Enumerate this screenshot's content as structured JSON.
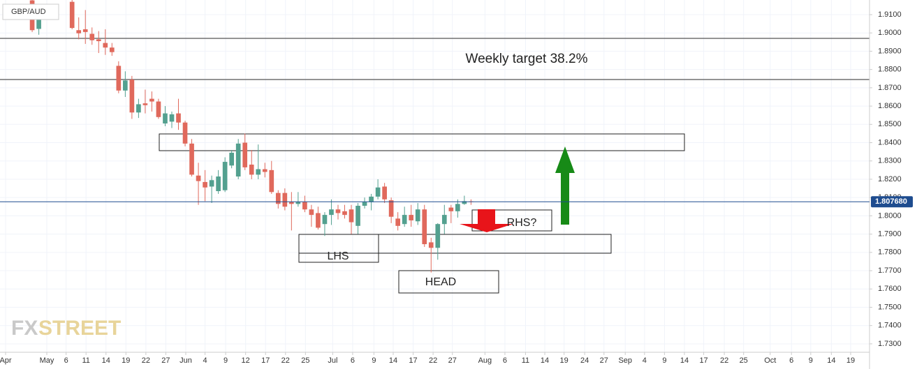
{
  "chart_data": {
    "type": "candlestick",
    "symbol": "GBP/AUD",
    "up_color": "#53a08f",
    "down_color": "#e0695c",
    "grid": true,
    "xlim": [
      -0.84,
      129.94
    ],
    "ylim": [
      1.7254,
      1.918
    ],
    "yticks": [
      {
        "value": 1.73,
        "label": "1.7300"
      },
      {
        "value": 1.74,
        "label": "1.7400"
      },
      {
        "value": 1.75,
        "label": "1.7500"
      },
      {
        "value": 1.76,
        "label": "1.7600"
      },
      {
        "value": 1.77,
        "label": "1.7700"
      },
      {
        "value": 1.78,
        "label": "1.7800"
      },
      {
        "value": 1.79,
        "label": "1.7900"
      },
      {
        "value": 1.8,
        "label": "1.8000"
      },
      {
        "value": 1.81,
        "label": "1.8100"
      },
      {
        "value": 1.82,
        "label": "1.8200"
      },
      {
        "value": 1.83,
        "label": "1.8300"
      },
      {
        "value": 1.84,
        "label": "1.8400"
      },
      {
        "value": 1.85,
        "label": "1.8500"
      },
      {
        "value": 1.86,
        "label": "1.8600"
      },
      {
        "value": 1.87,
        "label": "1.8700"
      },
      {
        "value": 1.88,
        "label": "1.8800"
      },
      {
        "value": 1.89,
        "label": "1.8900"
      },
      {
        "value": 1.9,
        "label": "1.9000"
      },
      {
        "value": 1.91,
        "label": "1.9100"
      }
    ],
    "xticks": [
      {
        "value": 0,
        "label": "Apr"
      },
      {
        "value": 6.2,
        "label": "May"
      },
      {
        "value": 9.1,
        "label": "6"
      },
      {
        "value": 12.1,
        "label": "11"
      },
      {
        "value": 15.1,
        "label": "14"
      },
      {
        "value": 18.1,
        "label": "19"
      },
      {
        "value": 21.1,
        "label": "22"
      },
      {
        "value": 24.1,
        "label": "27"
      },
      {
        "value": 27.1,
        "label": "Jun"
      },
      {
        "value": 30,
        "label": "4"
      },
      {
        "value": 33.1,
        "label": "9"
      },
      {
        "value": 36.1,
        "label": "12"
      },
      {
        "value": 39.1,
        "label": "17"
      },
      {
        "value": 42.1,
        "label": "22"
      },
      {
        "value": 45.1,
        "label": "25"
      },
      {
        "value": 49.2,
        "label": "Jul"
      },
      {
        "value": 52.2,
        "label": "6"
      },
      {
        "value": 55.4,
        "label": "9"
      },
      {
        "value": 58.3,
        "label": "14"
      },
      {
        "value": 61.3,
        "label": "17"
      },
      {
        "value": 64.3,
        "label": "22"
      },
      {
        "value": 67.2,
        "label": "27"
      },
      {
        "value": 72.1,
        "label": "Aug"
      },
      {
        "value": 75.1,
        "label": "6"
      },
      {
        "value": 78.2,
        "label": "11"
      },
      {
        "value": 81.1,
        "label": "14"
      },
      {
        "value": 84,
        "label": "19"
      },
      {
        "value": 87.1,
        "label": "24"
      },
      {
        "value": 90,
        "label": "27"
      },
      {
        "value": 93.2,
        "label": "Sep"
      },
      {
        "value": 96.1,
        "label": "4"
      },
      {
        "value": 99.1,
        "label": "9"
      },
      {
        "value": 102.1,
        "label": "14"
      },
      {
        "value": 105,
        "label": "17"
      },
      {
        "value": 108.1,
        "label": "22"
      },
      {
        "value": 111,
        "label": "25"
      },
      {
        "value": 115,
        "label": "Oct"
      },
      {
        "value": 118.2,
        "label": "6"
      },
      {
        "value": 121.1,
        "label": "9"
      },
      {
        "value": 124.2,
        "label": "14"
      },
      {
        "value": 127.1,
        "label": "19"
      }
    ],
    "candles": [
      {
        "x": 4,
        "open": 1.9178,
        "high": 1.918,
        "low": 1.9005,
        "close": 1.9015
      },
      {
        "x": 5,
        "open": 1.9022,
        "high": 1.914,
        "low": 1.899,
        "close": 1.9077
      },
      {
        "x": 10,
        "open": 1.917,
        "high": 1.918,
        "low": 1.902,
        "close": 1.9027
      },
      {
        "x": 11,
        "open": 1.9015,
        "high": 1.9085,
        "low": 1.8965,
        "close": 1.8998
      },
      {
        "x": 12,
        "open": 1.902,
        "high": 1.9125,
        "low": 1.894,
        "close": 1.9005
      },
      {
        "x": 13,
        "open": 1.8995,
        "high": 1.903,
        "low": 1.8935,
        "close": 1.896
      },
      {
        "x": 14,
        "open": 1.8965,
        "high": 1.901,
        "low": 1.889,
        "close": 1.8955
      },
      {
        "x": 15,
        "open": 1.8945,
        "high": 1.902,
        "low": 1.888,
        "close": 1.892
      },
      {
        "x": 16,
        "open": 1.892,
        "high": 1.8945,
        "low": 1.8875,
        "close": 1.8895
      },
      {
        "x": 17,
        "open": 1.882,
        "high": 1.8845,
        "low": 1.867,
        "close": 1.8685
      },
      {
        "x": 18,
        "open": 1.8685,
        "high": 1.879,
        "low": 1.865,
        "close": 1.874
      },
      {
        "x": 19,
        "open": 1.8745,
        "high": 1.8765,
        "low": 1.853,
        "close": 1.8565
      },
      {
        "x": 20,
        "open": 1.8565,
        "high": 1.864,
        "low": 1.8535,
        "close": 1.861
      },
      {
        "x": 21,
        "open": 1.8615,
        "high": 1.869,
        "low": 1.856,
        "close": 1.8605
      },
      {
        "x": 22,
        "open": 1.864,
        "high": 1.868,
        "low": 1.857,
        "close": 1.8625
      },
      {
        "x": 23,
        "open": 1.8625,
        "high": 1.864,
        "low": 1.853,
        "close": 1.854
      },
      {
        "x": 24,
        "open": 1.8505,
        "high": 1.86,
        "low": 1.849,
        "close": 1.856
      },
      {
        "x": 25,
        "open": 1.8515,
        "high": 1.857,
        "low": 1.848,
        "close": 1.8555
      },
      {
        "x": 26,
        "open": 1.856,
        "high": 1.864,
        "low": 1.847,
        "close": 1.851
      },
      {
        "x": 27,
        "open": 1.851,
        "high": 1.852,
        "low": 1.838,
        "close": 1.8395
      },
      {
        "x": 28,
        "open": 1.8395,
        "high": 1.842,
        "low": 1.8215,
        "close": 1.8225
      },
      {
        "x": 29,
        "open": 1.822,
        "high": 1.829,
        "low": 1.806,
        "close": 1.819
      },
      {
        "x": 30,
        "open": 1.8185,
        "high": 1.825,
        "low": 1.808,
        "close": 1.8155
      },
      {
        "x": 31,
        "open": 1.816,
        "high": 1.822,
        "low": 1.807,
        "close": 1.8195
      },
      {
        "x": 32,
        "open": 1.8135,
        "high": 1.825,
        "low": 1.812,
        "close": 1.8215
      },
      {
        "x": 33,
        "open": 1.814,
        "high": 1.832,
        "low": 1.813,
        "close": 1.8295
      },
      {
        "x": 34,
        "open": 1.8275,
        "high": 1.836,
        "low": 1.826,
        "close": 1.8345
      },
      {
        "x": 35,
        "open": 1.8215,
        "high": 1.842,
        "low": 1.82,
        "close": 1.8395
      },
      {
        "x": 36,
        "open": 1.84,
        "high": 1.845,
        "low": 1.825,
        "close": 1.8265
      },
      {
        "x": 37,
        "open": 1.828,
        "high": 1.836,
        "low": 1.82,
        "close": 1.8225
      },
      {
        "x": 38,
        "open": 1.8225,
        "high": 1.839,
        "low": 1.82,
        "close": 1.8255
      },
      {
        "x": 39,
        "open": 1.8255,
        "high": 1.829,
        "low": 1.821,
        "close": 1.824
      },
      {
        "x": 40,
        "open": 1.825,
        "high": 1.83,
        "low": 1.812,
        "close": 1.813
      },
      {
        "x": 41,
        "open": 1.8125,
        "high": 1.814,
        "low": 1.804,
        "close": 1.8065
      },
      {
        "x": 42,
        "open": 1.8125,
        "high": 1.815,
        "low": 1.803,
        "close": 1.805
      },
      {
        "x": 43,
        "open": 1.8075,
        "high": 1.813,
        "low": 1.792,
        "close": 1.8065
      },
      {
        "x": 44,
        "open": 1.8065,
        "high": 1.813,
        "low": 1.805,
        "close": 1.8075
      },
      {
        "x": 45,
        "open": 1.8075,
        "high": 1.811,
        "low": 1.802,
        "close": 1.8035
      },
      {
        "x": 46,
        "open": 1.8035,
        "high": 1.806,
        "low": 1.794,
        "close": 1.8005
      },
      {
        "x": 47,
        "open": 1.8015,
        "high": 1.805,
        "low": 1.7925,
        "close": 1.7935
      },
      {
        "x": 48,
        "open": 1.7955,
        "high": 1.802,
        "low": 1.789,
        "close": 1.8005
      },
      {
        "x": 49,
        "open": 1.8005,
        "high": 1.809,
        "low": 1.795,
        "close": 1.8035
      },
      {
        "x": 50,
        "open": 1.8035,
        "high": 1.806,
        "low": 1.798,
        "close": 1.8015
      },
      {
        "x": 51,
        "open": 1.8025,
        "high": 1.806,
        "low": 1.7985,
        "close": 1.8005
      },
      {
        "x": 52,
        "open": 1.8035,
        "high": 1.806,
        "low": 1.79,
        "close": 1.7965
      },
      {
        "x": 53,
        "open": 1.7945,
        "high": 1.807,
        "low": 1.79,
        "close": 1.8055
      },
      {
        "x": 54,
        "open": 1.8055,
        "high": 1.81,
        "low": 1.804,
        "close": 1.8075
      },
      {
        "x": 55,
        "open": 1.8075,
        "high": 1.812,
        "low": 1.803,
        "close": 1.8105
      },
      {
        "x": 56,
        "open": 1.8105,
        "high": 1.82,
        "low": 1.809,
        "close": 1.8155
      },
      {
        "x": 57,
        "open": 1.816,
        "high": 1.818,
        "low": 1.807,
        "close": 1.809
      },
      {
        "x": 58,
        "open": 1.8085,
        "high": 1.81,
        "low": 1.796,
        "close": 1.7995
      },
      {
        "x": 59,
        "open": 1.7985,
        "high": 1.802,
        "low": 1.792,
        "close": 1.7945
      },
      {
        "x": 60,
        "open": 1.7955,
        "high": 1.805,
        "low": 1.794,
        "close": 1.8005
      },
      {
        "x": 61,
        "open": 1.8005,
        "high": 1.806,
        "low": 1.794,
        "close": 1.7975
      },
      {
        "x": 62,
        "open": 1.797,
        "high": 1.807,
        "low": 1.795,
        "close": 1.8035
      },
      {
        "x": 63,
        "open": 1.8035,
        "high": 1.806,
        "low": 1.783,
        "close": 1.7845
      },
      {
        "x": 64,
        "open": 1.7855,
        "high": 1.788,
        "low": 1.769,
        "close": 1.7825
      },
      {
        "x": 65,
        "open": 1.7825,
        "high": 1.796,
        "low": 1.776,
        "close": 1.7955
      },
      {
        "x": 66,
        "open": 1.7955,
        "high": 1.806,
        "low": 1.79,
        "close": 1.8005
      },
      {
        "x": 67,
        "open": 1.8045,
        "high": 1.806,
        "low": 1.796,
        "close": 1.8025
      },
      {
        "x": 68,
        "open": 1.8025,
        "high": 1.809,
        "low": 1.799,
        "close": 1.8065
      },
      {
        "x": 69,
        "open": 1.8065,
        "high": 1.811,
        "low": 1.806,
        "close": 1.808
      },
      {
        "x": 70,
        "open": 1.8079,
        "high": 1.809,
        "low": 1.806,
        "close": 1.80768
      }
    ],
    "current_price": {
      "value": 1.80768,
      "label": "1.807680"
    },
    "annotations": {
      "target": "Weekly target 38.2%",
      "rhs": "RHS?",
      "lhs": "LHS",
      "head": "HEAD"
    },
    "logo": {
      "part1": "FX",
      "part2": "STREET"
    }
  }
}
